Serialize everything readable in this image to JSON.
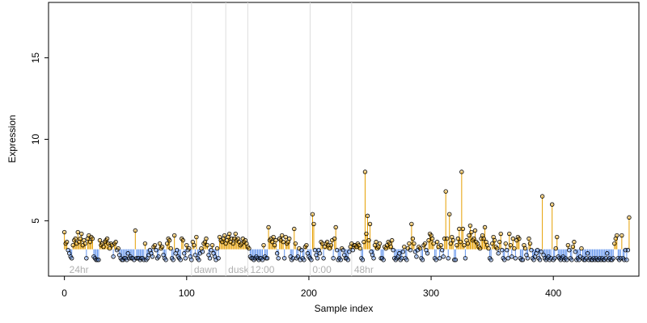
{
  "chart_data": {
    "type": "lollipop",
    "xlabel": "Sample index",
    "ylabel": "Expression",
    "baseline": 3.25,
    "colors": {
      "above": "#e69f00",
      "below": "#6495ed"
    },
    "xlim": [
      -13,
      470
    ],
    "ylim": [
      1.6,
      18.4
    ],
    "xticks": [
      0,
      100,
      200,
      300,
      400
    ],
    "yticks": [
      5,
      10,
      15
    ],
    "annotations": [
      {
        "x": 2,
        "label": "24hr",
        "line": false
      },
      {
        "x": 104,
        "label": "dawn",
        "line": true
      },
      {
        "x": 132,
        "label": "dusk",
        "line": true
      },
      {
        "x": 150,
        "label": "12:00",
        "line": true
      },
      {
        "x": 201,
        "label": "0:00",
        "line": true
      },
      {
        "x": 235,
        "label": "48hr",
        "line": true
      }
    ],
    "x": [
      0,
      1,
      2,
      3,
      4,
      5,
      6,
      7,
      8,
      9,
      10,
      11,
      12,
      13,
      14,
      15,
      16,
      17,
      18,
      19,
      20,
      21,
      22,
      23,
      24,
      25,
      26,
      27,
      28,
      29,
      30,
      31,
      32,
      33,
      34,
      35,
      36,
      37,
      38,
      39,
      40,
      41,
      42,
      43,
      44,
      45,
      46,
      47,
      48,
      49,
      50,
      51,
      52,
      53,
      54,
      55,
      56,
      57,
      58,
      59,
      60,
      61,
      62,
      63,
      64,
      65,
      66,
      67,
      68,
      69,
      70,
      71,
      72,
      73,
      74,
      75,
      76,
      77,
      78,
      79,
      80,
      81,
      82,
      83,
      84,
      85,
      86,
      87,
      88,
      89,
      90,
      91,
      92,
      93,
      94,
      95,
      96,
      97,
      98,
      99,
      100,
      101,
      102,
      103,
      104,
      105,
      106,
      107,
      108,
      109,
      110,
      111,
      112,
      113,
      114,
      115,
      116,
      117,
      118,
      119,
      120,
      121,
      122,
      123,
      124,
      125,
      126,
      127,
      128,
      129,
      130,
      131,
      132,
      133,
      134,
      135,
      136,
      137,
      138,
      139,
      140,
      141,
      142,
      143,
      144,
      145,
      146,
      147,
      148,
      149,
      150,
      151,
      152,
      153,
      154,
      155,
      156,
      157,
      158,
      159,
      160,
      161,
      162,
      163,
      164,
      165,
      166,
      167,
      168,
      169,
      170,
      171,
      172,
      173,
      174,
      175,
      176,
      177,
      178,
      179,
      180,
      181,
      182,
      183,
      184,
      185,
      186,
      187,
      188,
      189,
      190,
      191,
      192,
      193,
      194,
      195,
      196,
      197,
      198,
      199,
      200,
      201,
      202,
      203,
      204,
      205,
      206,
      207,
      208,
      209,
      210,
      211,
      212,
      213,
      214,
      215,
      216,
      217,
      218,
      219,
      220,
      221,
      222,
      223,
      224,
      225,
      226,
      227,
      228,
      229,
      230,
      231,
      232,
      233,
      234,
      235,
      236,
      237,
      238,
      239,
      240,
      241,
      242,
      243,
      244,
      245,
      246,
      247,
      248,
      249,
      250,
      251,
      252,
      253,
      254,
      255,
      256,
      257,
      258,
      259,
      260,
      261,
      262,
      263,
      264,
      265,
      266,
      267,
      268,
      269,
      270,
      271,
      272,
      273,
      274,
      275,
      276,
      277,
      278,
      279,
      280,
      281,
      282,
      283,
      284,
      285,
      286,
      287,
      288,
      289,
      290,
      291,
      292,
      293,
      294,
      295,
      296,
      297,
      298,
      299,
      300,
      301,
      302,
      303,
      304,
      305,
      306,
      307,
      308,
      309,
      310,
      311,
      312,
      313,
      314,
      315,
      316,
      317,
      318,
      319,
      320,
      321,
      322,
      323,
      324,
      325,
      326,
      327,
      328,
      329,
      330,
      331,
      332,
      333,
      334,
      335,
      336,
      337,
      338,
      339,
      340,
      341,
      342,
      343,
      344,
      345,
      346,
      347,
      348,
      349,
      350,
      351,
      352,
      353,
      354,
      355,
      356,
      357,
      358,
      359,
      360,
      361,
      362,
      363,
      364,
      365,
      366,
      367,
      368,
      369,
      370,
      371,
      372,
      373,
      374,
      375,
      376,
      377,
      378,
      379,
      380,
      381,
      382,
      383,
      384,
      385,
      386,
      387,
      388,
      389,
      390,
      391,
      392,
      393,
      394,
      395,
      396,
      397,
      398,
      399,
      400,
      401,
      402,
      403,
      404,
      405,
      406,
      407,
      408,
      409,
      410,
      411,
      412,
      413,
      414,
      415,
      416,
      417,
      418,
      419,
      420,
      421,
      422,
      423,
      424,
      425,
      426,
      427,
      428,
      429,
      430,
      431,
      432,
      433,
      434,
      435,
      436,
      437,
      438,
      439,
      440,
      441,
      442,
      443,
      444,
      445,
      446,
      447,
      448,
      449,
      450,
      451,
      452,
      453,
      454,
      455,
      456,
      457,
      458,
      459,
      460,
      461,
      462
    ],
    "values": [
      4.3,
      3.6,
      3.7,
      3.2,
      3.0,
      2.8,
      2.7,
      3.5,
      3.8,
      3.9,
      3.6,
      4.3,
      3.7,
      3.9,
      4.2,
      3.5,
      3.8,
      3.6,
      2.7,
      3.9,
      4.1,
      3.7,
      4.0,
      3.9,
      2.8,
      2.7,
      2.6,
      2.6,
      2.6,
      3.8,
      3.5,
      3.6,
      3.4,
      3.7,
      3.8,
      3.9,
      3.6,
      3.3,
      3.6,
      3.5,
      2.8,
      3.6,
      3.7,
      3.2,
      3.3,
      2.9,
      2.7,
      2.6,
      2.6,
      2.7,
      2.7,
      2.6,
      3.0,
      2.7,
      2.8,
      2.7,
      2.7,
      2.6,
      4.4,
      2.7,
      2.7,
      2.7,
      2.6,
      2.7,
      2.7,
      2.6,
      3.6,
      2.6,
      2.7,
      2.9,
      3.2,
      3.0,
      2.8,
      3.4,
      3.5,
      3.2,
      2.7,
      2.8,
      3.6,
      3.3,
      3.4,
      2.9,
      2.7,
      2.6,
      3.6,
      3.9,
      3.8,
      3.3,
      2.7,
      2.6,
      4.1,
      3.0,
      3.2,
      2.8,
      2.7,
      2.6,
      3.9,
      3.8,
      3.0,
      2.7,
      3.5,
      3.2,
      3.3,
      2.8,
      2.6,
      3.7,
      3.5,
      2.9,
      4.0,
      2.7,
      2.6,
      3.0,
      3.3,
      3.1,
      3.6,
      3.7,
      3.9,
      3.5,
      2.9,
      2.7,
      3.2,
      3.5,
      3.0,
      2.8,
      2.6,
      3.3,
      2.7,
      4.0,
      3.8,
      3.7,
      3.9,
      4.1,
      3.6,
      3.8,
      4.0,
      4.2,
      3.7,
      3.9,
      3.6,
      3.9,
      4.2,
      3.8,
      3.9,
      3.7,
      3.5,
      3.6,
      3.9,
      3.7,
      3.8,
      3.6,
      3.4,
      3.3,
      2.8,
      2.7,
      2.7,
      2.6,
      2.7,
      2.8,
      2.7,
      2.6,
      2.7,
      2.7,
      2.6,
      3.5,
      2.8,
      2.7,
      2.7,
      4.6,
      3.8,
      3.9,
      3.7,
      4.0,
      3.5,
      3.8,
      3.0,
      2.7,
      3.9,
      3.8,
      4.1,
      3.7,
      2.7,
      4.0,
      3.6,
      3.7,
      3.9,
      2.8,
      2.6,
      2.7,
      4.5,
      3.6,
      2.7,
      2.8,
      3.3,
      2.6,
      3.2,
      2.7,
      2.6,
      3.4,
      3.5,
      3.0,
      2.8,
      2.7,
      2.6,
      5.4,
      4.8,
      3.2,
      2.9,
      2.7,
      3.2,
      3.0,
      3.7,
      3.6,
      2.7,
      3.4,
      3.6,
      3.7,
      3.5,
      3.3,
      3.5,
      3.8,
      2.7,
      3.9,
      4.6,
      3.2,
      2.6,
      2.7,
      2.6,
      3.3,
      3.2,
      2.9,
      2.7,
      2.7,
      2.6,
      3.1,
      3.4,
      3.6,
      3.2,
      3.5,
      3.5,
      3.4,
      3.6,
      3.5,
      3.3,
      2.7,
      2.6,
      3.7,
      8.0,
      4.2,
      5.3,
      3.8,
      4.8,
      3.1,
      2.9,
      2.7,
      3.5,
      3.7,
      3.3,
      3.4,
      3.6,
      2.7,
      2.7,
      2.6,
      3.4,
      3.3,
      3.5,
      3.7,
      3.6,
      3.4,
      3.8,
      3.2,
      2.7,
      2.6,
      2.7,
      2.8,
      3.0,
      2.6,
      2.7,
      3.1,
      3.4,
      2.7,
      2.6,
      3.3,
      3.6,
      3.2,
      4.8,
      3.9,
      3.6,
      3.1,
      2.8,
      3.2,
      3.4,
      3.3,
      2.7,
      2.6,
      3.5,
      3.6,
      3.2,
      3.0,
      3.8,
      4.2,
      4.1,
      3.9,
      3.6,
      2.7,
      2.6,
      3.7,
      3.4,
      2.7,
      3.5,
      3.2,
      2.8,
      3.9,
      6.8,
      3.9,
      2.7,
      5.4,
      3.6,
      4.0,
      3.8,
      2.6,
      2.6,
      3.5,
      3.9,
      4.5,
      3.7,
      8.0,
      4.5,
      3.5,
      2.7,
      3.8,
      3.6,
      4.1,
      4.7,
      4.3,
      3.8,
      3.9,
      4.4,
      3.7,
      3.6,
      3.4,
      3.3,
      3.9,
      4.1,
      3.9,
      4.6,
      3.7,
      3.5,
      3.3,
      2.7,
      2.6,
      3.6,
      4.0,
      3.8,
      3.4,
      3.3,
      3.0,
      3.7,
      4.2,
      3.2,
      2.7,
      2.6,
      3.6,
      3.2,
      2.7,
      4.2,
      3.5,
      2.8,
      3.9,
      3.3,
      2.7,
      3.8,
      4.0,
      3.9,
      2.7,
      2.6,
      2.6,
      3.5,
      3.3,
      2.9,
      2.7,
      3.9,
      3.6,
      3.2,
      2.7,
      2.6,
      2.8,
      3.0,
      3.2,
      2.7,
      2.6,
      3.1,
      6.5,
      2.9,
      2.7,
      2.6,
      2.7,
      2.8,
      2.6,
      2.7,
      6.0,
      2.6,
      2.7,
      3.3,
      4.0,
      2.8,
      2.7,
      2.6,
      2.7,
      2.8,
      2.6,
      2.7,
      2.6,
      3.5,
      3.2,
      2.7,
      2.6,
      3.4,
      3.7,
      3.1,
      2.6,
      2.7,
      2.6,
      2.8,
      3.3,
      2.7,
      2.6,
      2.6,
      2.7,
      3.0,
      2.6,
      2.7,
      2.6,
      2.6,
      2.7,
      2.6,
      2.7,
      2.6,
      2.6,
      2.7,
      2.6,
      2.7,
      2.6,
      2.6,
      2.7,
      3.0,
      2.6,
      2.7,
      2.6,
      2.6,
      2.7,
      3.6,
      3.9,
      4.1,
      2.7,
      2.6,
      2.7,
      4.1,
      2.7,
      2.6,
      3.2,
      2.6,
      3.2,
      5.2
    ]
  }
}
